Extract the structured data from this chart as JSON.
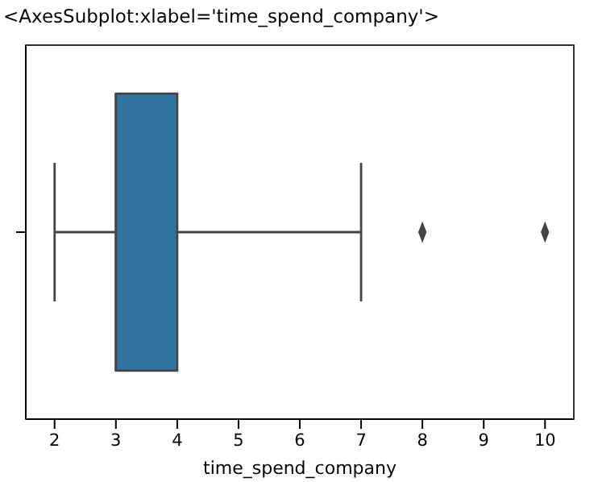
{
  "chart_data": {
    "type": "box",
    "orientation": "horizontal",
    "title": "<AxesSubplot:xlabel='time_spend_company'>",
    "xlabel": "time_spend_company",
    "categories": [
      null
    ],
    "color": "#3274a1",
    "marker": "diamond",
    "boxes": [
      {
        "low": 2,
        "q1": 3,
        "median": 3,
        "q3": 4,
        "high": 7,
        "outliers": [
          8,
          10
        ]
      }
    ],
    "xlim": [
      1.53,
      10.47
    ],
    "xticks": [
      2,
      3,
      4,
      5,
      6,
      7,
      8,
      9,
      10
    ]
  }
}
